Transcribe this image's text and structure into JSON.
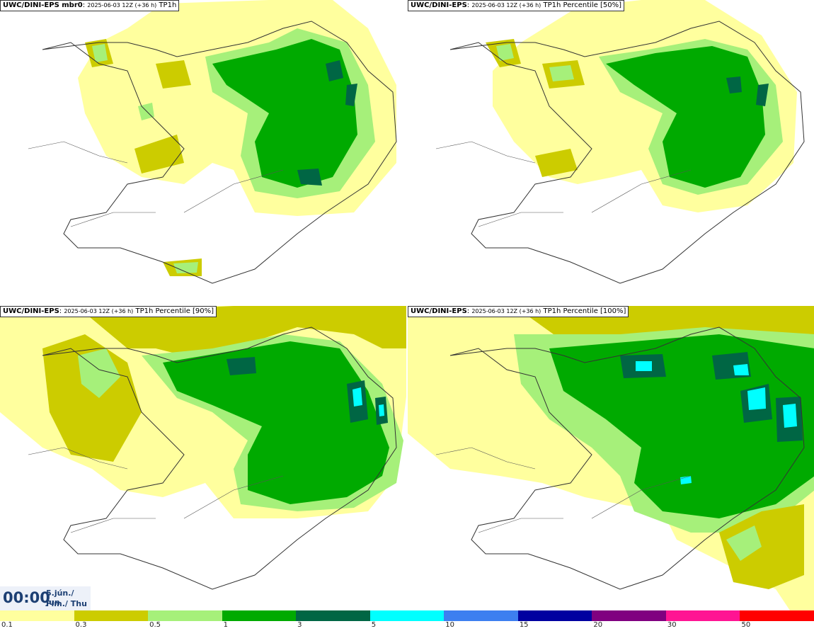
{
  "panels": [
    {
      "model": "UWC/DINI-EPS mbr0",
      "run": "2025-06-03 12Z (+36 h)",
      "field": "TP1h"
    },
    {
      "model": "UWC/DINI-EPS",
      "run": "2025-06-03 12Z (+36 h)",
      "field": "TP1h Percentile [50%]"
    },
    {
      "model": "UWC/DINI-EPS",
      "run": "2025-06-03 12Z (+36 h)",
      "field": "TP1h Percentile [90%]"
    },
    {
      "model": "UWC/DINI-EPS",
      "run": "2025-06-03 12Z (+36 h)",
      "field": "TP1h Percentile [100%]"
    }
  ],
  "valid_time": {
    "time": "00:00",
    "date_line": "5.jún./ Jun",
    "day_line": "Fim./ Thu"
  },
  "legend": {
    "colors": [
      "#ffff9e",
      "#cccc00",
      "#a6f07a",
      "#00aa00",
      "#006644",
      "#00ffff",
      "#3d7ff0",
      "#0000a0",
      "#800080",
      "#ff1493",
      "#ff0000"
    ],
    "labels": [
      "0.1",
      "0.3",
      "0.5",
      "1",
      "3",
      "5",
      "10",
      "15",
      "20",
      "30",
      "50"
    ]
  }
}
